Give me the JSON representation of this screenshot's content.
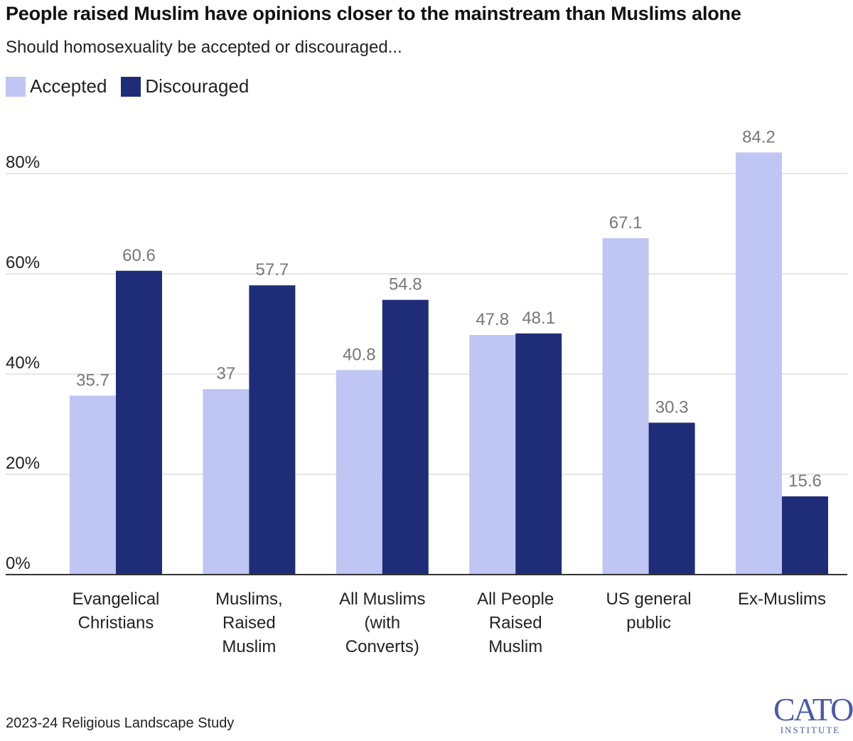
{
  "title": "People raised Muslim have opinions closer to the mainstream than Muslims alone",
  "subtitle": "Should homosexuality be accepted or discouraged...",
  "source": "2023-24 Religious Landscape Study",
  "logo": {
    "main": "CATO",
    "sub": "INSTITUTE"
  },
  "chart_data": {
    "type": "bar",
    "categories": [
      [
        "Evangelical",
        "Christians"
      ],
      [
        "Muslims,",
        "Raised",
        "Muslim"
      ],
      [
        "All Muslims",
        "(with",
        "Converts)"
      ],
      [
        "All People",
        "Raised",
        "Muslim"
      ],
      [
        "US general",
        "public"
      ],
      [
        "Ex-Muslims"
      ]
    ],
    "series": [
      {
        "name": "Accepted",
        "color": "#bfc6f4",
        "values": [
          35.7,
          37,
          40.8,
          47.8,
          67.1,
          84.2
        ]
      },
      {
        "name": "Discouraged",
        "color": "#1f2d78",
        "values": [
          60.6,
          57.7,
          54.8,
          48.1,
          30.3,
          15.6
        ]
      }
    ],
    "ylim": [
      0,
      80
    ],
    "yticks": [
      0,
      20,
      40,
      60,
      80
    ],
    "ytick_labels": [
      "0%",
      "20%",
      "40%",
      "60%",
      "80%"
    ],
    "label_color": "#777777",
    "grid": true,
    "legend_position": "top-left",
    "xlabel": "",
    "ylabel": ""
  }
}
